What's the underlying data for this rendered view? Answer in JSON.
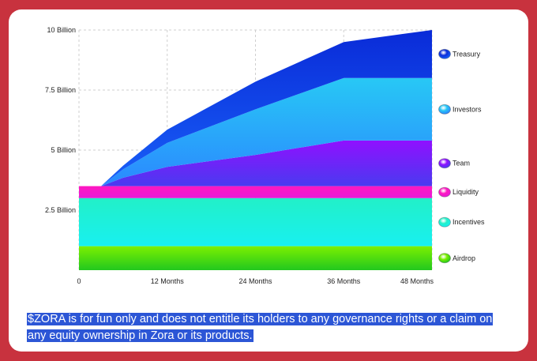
{
  "chart_data": {
    "type": "area",
    "title": "",
    "xlabel": "",
    "ylabel": "",
    "x_ticks": [
      {
        "value": 0,
        "label": "0"
      },
      {
        "value": 12,
        "label": "12 Months"
      },
      {
        "value": 24,
        "label": "24 Months"
      },
      {
        "value": 36,
        "label": "36 Months"
      },
      {
        "value": 48,
        "label": "48 Months"
      }
    ],
    "y_ticks": [
      {
        "value": 2.5,
        "label": "2.5 Billion"
      },
      {
        "value": 5,
        "label": "5 Billion"
      },
      {
        "value": 7.5,
        "label": "7.5 Billion"
      },
      {
        "value": 10,
        "label": "10 Billion"
      }
    ],
    "xlim": [
      0,
      48
    ],
    "ylim": [
      0,
      10
    ],
    "units": "billion tokens",
    "grid": true,
    "legend_position": "right",
    "x": [
      0,
      3,
      6,
      12,
      24,
      36,
      48
    ],
    "series": [
      {
        "name": "Airdrop",
        "color_top": "#7cf000",
        "color_bottom": "#22c81e",
        "values": [
          1.0,
          1.0,
          1.0,
          1.0,
          1.0,
          1.0,
          1.0
        ]
      },
      {
        "name": "Incentives",
        "color_top": "#22f0c8",
        "color_bottom": "#18f0f0",
        "values": [
          2.0,
          2.0,
          2.0,
          2.0,
          2.0,
          2.0,
          2.0
        ]
      },
      {
        "name": "Liquidity",
        "color_top": "#ff18c0",
        "color_bottom": "#e81ad8",
        "values": [
          0.5,
          0.5,
          0.5,
          0.5,
          0.5,
          0.5,
          0.5
        ]
      },
      {
        "name": "Team",
        "color_top": "#9010ff",
        "color_bottom": "#4a3af0",
        "values": [
          0.0,
          0.0,
          0.35,
          0.8,
          1.3,
          1.9,
          1.9
        ]
      },
      {
        "name": "Investors",
        "color_top": "#28c8f5",
        "color_bottom": "#2a88ff",
        "values": [
          0.0,
          0.0,
          0.35,
          1.0,
          1.9,
          2.6,
          2.6
        ]
      },
      {
        "name": "Treasury",
        "color_top": "#0a2bd8",
        "color_bottom": "#1860f8",
        "values": [
          0.0,
          0.0,
          0.15,
          0.55,
          1.15,
          1.5,
          2.0
        ]
      }
    ]
  },
  "disclaimer": "$ZORA is for fun only and does not entitle its holders to any governance rights or a claim on any equity ownership in Zora or its products."
}
